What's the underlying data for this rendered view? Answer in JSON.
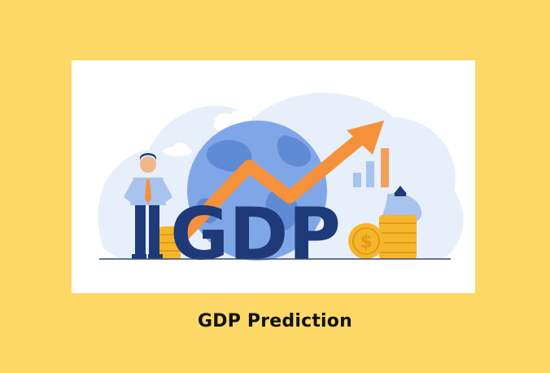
{
  "illustration": {
    "icon": "gdp-growth-illustration",
    "letters": "GDP",
    "coin_symbol": "$",
    "colors": {
      "page_background": "#FDD866",
      "card_background": "#FFFFFF",
      "blob": "#E6EFFA",
      "globe": "#7FA7E8",
      "letters": "#1F3A78",
      "arrow": "#F5913A",
      "coins": "#F6B62C",
      "bars": "#A9C3EF"
    }
  },
  "caption": {
    "text": "GDP Prediction"
  }
}
